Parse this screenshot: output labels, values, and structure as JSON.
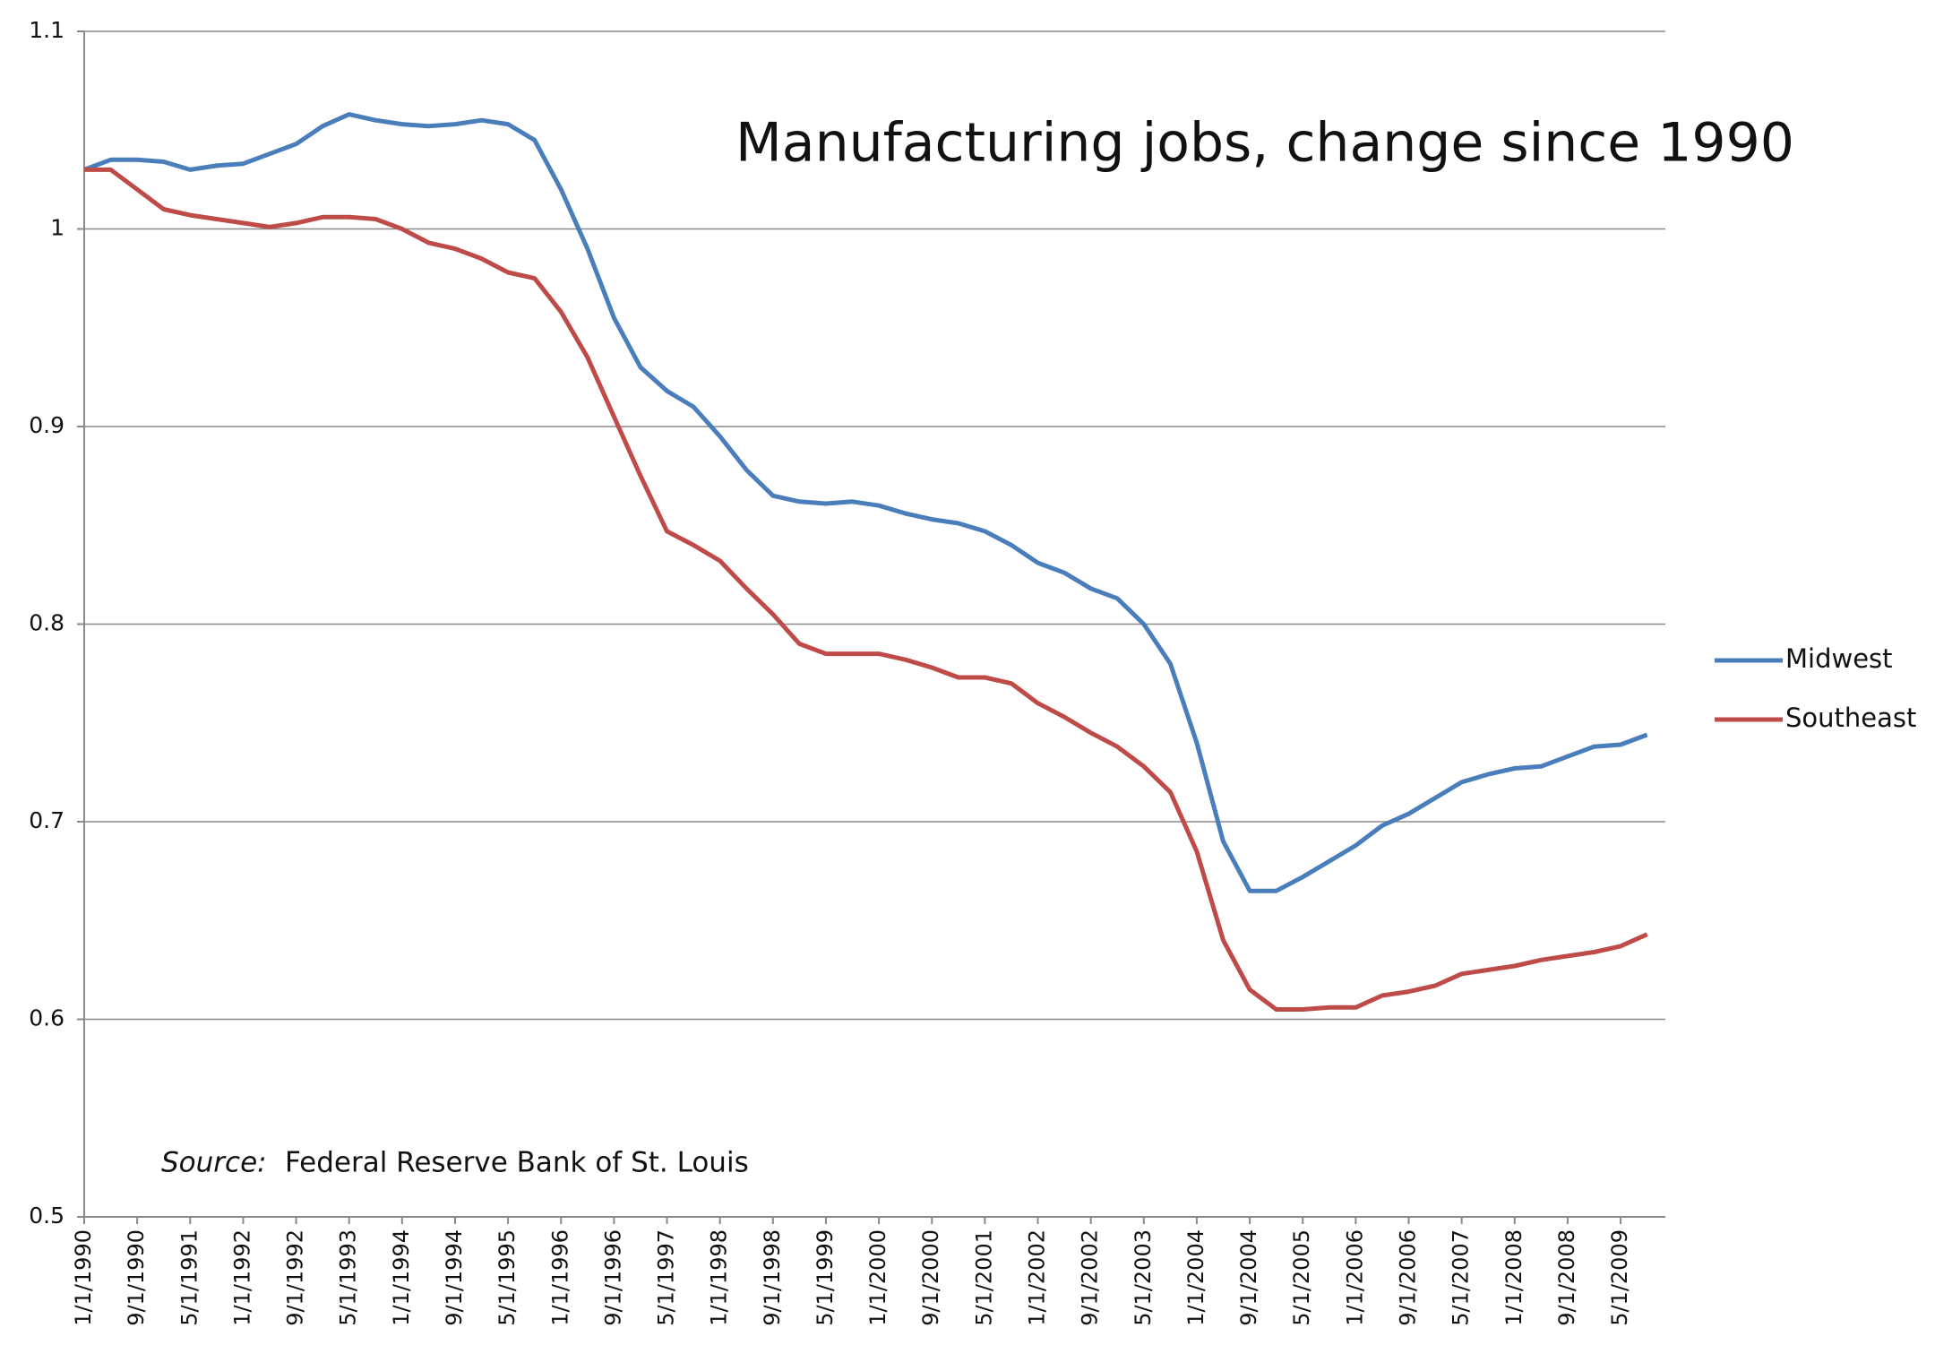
{
  "chart_data": {
    "type": "line",
    "title": "Manufacturing jobs, change since 1990",
    "source_label": "Source:",
    "source": "Federal Reserve Bank of St. Louis",
    "categories": [
      "1/1/1990",
      null,
      "9/1/1990",
      null,
      "5/1/1991",
      null,
      "1/1/1992",
      null,
      "9/1/1992",
      null,
      "5/1/1993",
      null,
      "1/1/1994",
      null,
      "9/1/1994",
      null,
      "5/1/1995",
      null,
      "1/1/1996",
      null,
      "9/1/1996",
      null,
      "5/1/1997",
      null,
      "1/1/1998",
      null,
      "9/1/1998",
      null,
      "5/1/1999",
      null,
      "1/1/2000",
      null,
      "9/1/2000",
      null,
      "5/1/2001",
      null,
      "1/1/2002",
      null,
      "9/1/2002",
      null,
      "5/1/2003",
      null,
      "1/1/2004",
      null,
      "9/1/2004",
      null,
      "5/1/2005",
      null,
      "1/1/2006",
      null,
      "9/1/2006",
      null,
      "5/1/2007",
      null,
      "1/1/2008",
      null,
      "9/1/2008",
      null,
      "5/1/2009",
      null
    ],
    "series": [
      {
        "name": "Midwest",
        "color": "#4a7ebb",
        "values": [
          1.03,
          1.035,
          1.035,
          1.034,
          1.03,
          1.032,
          1.033,
          1.038,
          1.043,
          1.052,
          1.058,
          1.055,
          1.053,
          1.052,
          1.053,
          1.055,
          1.053,
          1.045,
          1.02,
          0.99,
          0.955,
          0.93,
          0.918,
          0.91,
          0.895,
          0.878,
          0.865,
          0.862,
          0.861,
          0.862,
          0.86,
          0.856,
          0.853,
          0.851,
          0.847,
          0.84,
          0.831,
          0.826,
          0.818,
          0.813,
          0.8,
          0.78,
          0.74,
          0.69,
          0.665,
          0.665,
          0.672,
          0.68,
          0.688,
          0.698,
          0.704,
          0.712,
          0.72,
          0.724,
          0.727,
          0.728,
          0.733,
          0.738,
          0.739,
          0.744
        ]
      },
      {
        "name": "Southeast",
        "color": "#be4b48",
        "values": [
          1.03,
          1.03,
          1.02,
          1.01,
          1.007,
          1.005,
          1.003,
          1.001,
          1.003,
          1.006,
          1.006,
          1.005,
          1.0,
          0.993,
          0.99,
          0.985,
          0.978,
          0.975,
          0.958,
          0.935,
          0.905,
          0.875,
          0.847,
          0.84,
          0.832,
          0.818,
          0.805,
          0.79,
          0.785,
          0.785,
          0.785,
          0.782,
          0.778,
          0.773,
          0.773,
          0.77,
          0.76,
          0.753,
          0.745,
          0.738,
          0.728,
          0.715,
          0.685,
          0.64,
          0.615,
          0.605,
          0.605,
          0.606,
          0.606,
          0.612,
          0.614,
          0.617,
          0.623,
          0.625,
          0.627,
          0.63,
          0.632,
          0.634,
          0.637,
          0.643
        ]
      }
    ],
    "ylim": [
      0.5,
      1.1
    ],
    "yticks": [
      0.5,
      0.6,
      0.7,
      0.8,
      0.9,
      1,
      1.1
    ],
    "grid": true,
    "legend": "right"
  }
}
